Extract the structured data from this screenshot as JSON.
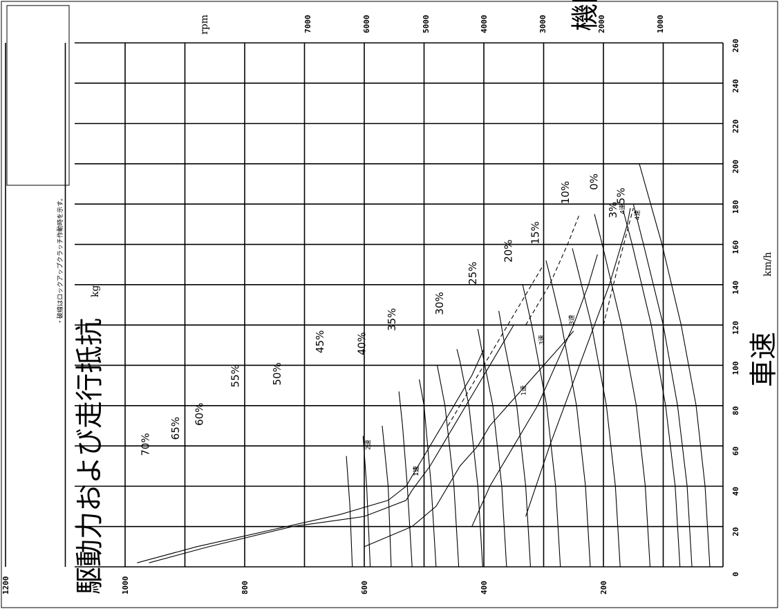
{
  "chart_data": {
    "type": "line",
    "title": "",
    "xlabel": "車速",
    "xunit": "km/h",
    "ylabel": "駆動力および走行抵抗",
    "yunit": "kg",
    "rpm_label": "機関回転数",
    "rpm_unit": "rpm",
    "note": "・破線はロックアップクラッチ作動時を示す。",
    "xlim": [
      0,
      260
    ],
    "ylim": [
      0,
      1200
    ],
    "grid": true,
    "x_ticks": [
      "0",
      "20",
      "40",
      "60",
      "80",
      "100",
      "120",
      "140",
      "160",
      "180",
      "200",
      "220",
      "240",
      "260"
    ],
    "y_ticks": [
      "200",
      "400",
      "600",
      "800",
      "1000",
      "1200"
    ],
    "rpm_ticks": [
      "7000",
      "6000",
      "5000",
      "4000",
      "3000",
      "2000",
      "1000"
    ],
    "resistance_curves": [
      {
        "name": "0%",
        "label_at": [
          187,
          210
        ],
        "points": [
          [
            0,
            22
          ],
          [
            40,
            30
          ],
          [
            80,
            45
          ],
          [
            120,
            70
          ],
          [
            160,
            102
          ],
          [
            200,
            140
          ]
        ]
      },
      {
        "name": "3%",
        "label_at": [
          173,
          178
        ],
        "points": [
          [
            0,
            52
          ],
          [
            40,
            60
          ],
          [
            80,
            76
          ],
          [
            120,
            100
          ],
          [
            160,
            133
          ],
          [
            180,
            150
          ]
        ]
      },
      {
        "name": "5%",
        "label_at": [
          180,
          165
        ],
        "points": [
          [
            0,
            72
          ],
          [
            40,
            80
          ],
          [
            80,
            96
          ],
          [
            120,
            120
          ],
          [
            160,
            152
          ],
          [
            177,
            167
          ]
        ]
      },
      {
        "name": "10%",
        "label_at": [
          180,
          258
        ],
        "points": [
          [
            0,
            122
          ],
          [
            40,
            130
          ],
          [
            80,
            145
          ],
          [
            120,
            170
          ],
          [
            160,
            202
          ],
          [
            175,
            215
          ]
        ]
      },
      {
        "name": "15%",
        "label_at": [
          160,
          308
        ],
        "points": [
          [
            0,
            172
          ],
          [
            40,
            180
          ],
          [
            80,
            195
          ],
          [
            120,
            220
          ],
          [
            150,
            245
          ],
          [
            158,
            252
          ]
        ]
      },
      {
        "name": "20%",
        "label_at": [
          151,
          353
        ],
        "points": [
          [
            0,
            222
          ],
          [
            40,
            230
          ],
          [
            80,
            245
          ],
          [
            120,
            270
          ],
          [
            145,
            290
          ],
          [
            152,
            296
          ]
        ]
      },
      {
        "name": "25%",
        "label_at": [
          140,
          413
        ],
        "points": [
          [
            0,
            272
          ],
          [
            40,
            280
          ],
          [
            80,
            295
          ],
          [
            120,
            320
          ],
          [
            140,
            335
          ]
        ]
      },
      {
        "name": "30%",
        "label_at": [
          125,
          468
        ],
        "points": [
          [
            0,
            322
          ],
          [
            40,
            330
          ],
          [
            80,
            345
          ],
          [
            110,
            365
          ],
          [
            127,
            375
          ]
        ]
      },
      {
        "name": "35%",
        "label_at": [
          117,
          548
        ],
        "points": [
          [
            0,
            362
          ],
          [
            40,
            370
          ],
          [
            80,
            385
          ],
          [
            110,
            405
          ],
          [
            118,
            410
          ]
        ]
      },
      {
        "name": "40%",
        "label_at": [
          105,
          598
        ],
        "points": [
          [
            0,
            402
          ],
          [
            40,
            410
          ],
          [
            80,
            425
          ],
          [
            102,
            440
          ],
          [
            108,
            445
          ]
        ]
      },
      {
        "name": "45%",
        "label_at": [
          106,
          668
        ],
        "points": [
          [
            0,
            442
          ],
          [
            40,
            450
          ],
          [
            80,
            465
          ],
          [
            100,
            478
          ]
        ]
      },
      {
        "name": "50%",
        "label_at": [
          90,
          740
        ],
        "points": [
          [
            0,
            480
          ],
          [
            40,
            488
          ],
          [
            80,
            500
          ],
          [
            93,
            508
          ]
        ]
      },
      {
        "name": "55%",
        "label_at": [
          89,
          810
        ],
        "points": [
          [
            0,
            520
          ],
          [
            40,
            528
          ],
          [
            70,
            536
          ],
          [
            87,
            542
          ]
        ]
      },
      {
        "name": "60%",
        "label_at": [
          70,
          870
        ],
        "points": [
          [
            0,
            555
          ],
          [
            40,
            560
          ],
          [
            70,
            570
          ]
        ]
      },
      {
        "name": "65%",
        "label_at": [
          63,
          910
        ],
        "points": [
          [
            0,
            590
          ],
          [
            40,
            596
          ],
          [
            65,
            602
          ]
        ]
      },
      {
        "name": "70%",
        "label_at": [
          55,
          960
        ],
        "points": [
          [
            0,
            620
          ],
          [
            30,
            624
          ],
          [
            55,
            630
          ]
        ]
      }
    ],
    "drive_curves": [
      {
        "name": "1速",
        "label_at": [
          45,
          510
        ],
        "style": "solid",
        "points": [
          [
            2,
            960
          ],
          [
            10,
            860
          ],
          [
            20,
            720
          ],
          [
            25,
            600
          ],
          [
            33,
            530
          ],
          [
            38,
            520
          ],
          [
            50,
            490
          ],
          [
            60,
            470
          ],
          [
            70,
            450
          ],
          [
            80,
            430
          ],
          [
            90,
            410
          ],
          [
            100,
            390
          ],
          [
            110,
            370
          ],
          [
            120,
            350
          ]
        ]
      },
      {
        "name": "1速",
        "label_at": [
          45,
          510
        ],
        "style": "solid",
        "points": [
          [
            2,
            980
          ],
          [
            10,
            880
          ],
          [
            18,
            760
          ],
          [
            26,
            640
          ],
          [
            33,
            560
          ],
          [
            40,
            530
          ],
          [
            55,
            500
          ],
          [
            65,
            480
          ],
          [
            75,
            460
          ],
          [
            85,
            440
          ],
          [
            95,
            420
          ],
          [
            108,
            400
          ]
        ]
      },
      {
        "name": "2速",
        "label_at": [
          58,
          590
        ],
        "style": "solid",
        "points": [
          [
            10,
            600
          ],
          [
            20,
            520
          ],
          [
            30,
            480
          ],
          [
            40,
            460
          ],
          [
            50,
            440
          ],
          [
            60,
            410
          ],
          [
            70,
            390
          ],
          [
            80,
            360
          ],
          [
            90,
            330
          ],
          [
            100,
            300
          ],
          [
            110,
            270
          ],
          [
            117,
            250
          ]
        ]
      },
      {
        "name": "3速",
        "label_at": [
          110,
          300
        ],
        "style": "solid",
        "points": [
          [
            20,
            420
          ],
          [
            40,
            390
          ],
          [
            60,
            350
          ],
          [
            80,
            310
          ],
          [
            100,
            280
          ],
          [
            120,
            250
          ],
          [
            140,
            225
          ],
          [
            155,
            210
          ]
        ]
      },
      {
        "name": "4速",
        "label_at": [
          175,
          165
        ],
        "style": "solid",
        "points": [
          [
            25,
            330
          ],
          [
            60,
            290
          ],
          [
            100,
            240
          ],
          [
            140,
            190
          ],
          [
            170,
            160
          ],
          [
            178,
            155
          ]
        ]
      },
      {
        "name": "1速",
        "label_at": [
          85,
          330
        ],
        "style": "dashed",
        "points": [
          [
            70,
            460
          ],
          [
            90,
            420
          ],
          [
            110,
            380
          ],
          [
            130,
            340
          ],
          [
            150,
            300
          ]
        ]
      },
      {
        "name": "3速",
        "label_at": [
          120,
          250
        ],
        "style": "dashed",
        "points": [
          [
            120,
            330
          ],
          [
            140,
            290
          ],
          [
            160,
            260
          ],
          [
            175,
            240
          ]
        ]
      },
      {
        "name": "4速",
        "label_at": [
          172,
          140
        ],
        "style": "dashed",
        "points": [
          [
            120,
            200
          ],
          [
            150,
            175
          ],
          [
            178,
            150
          ]
        ]
      }
    ]
  }
}
